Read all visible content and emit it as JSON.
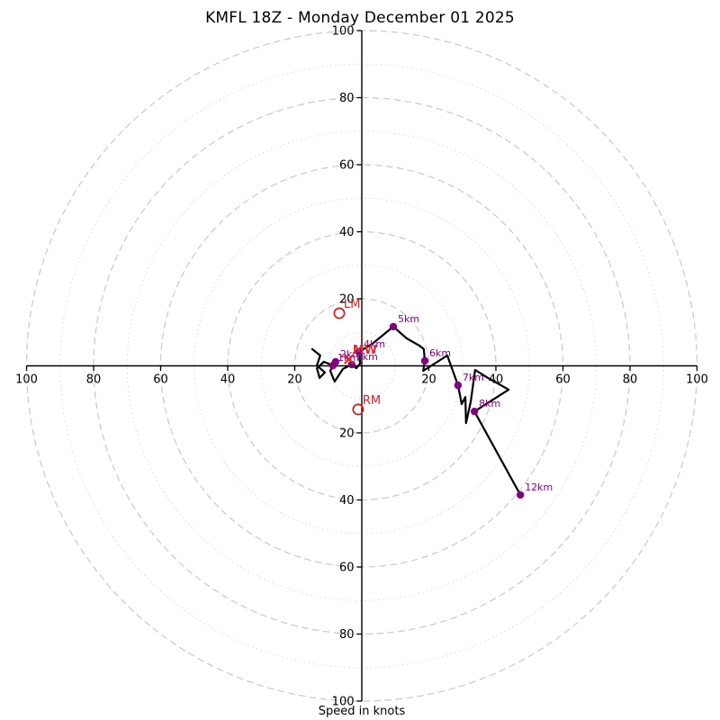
{
  "title": "KMFL 18Z - Monday December 01 2025",
  "xlabel": "Speed in knots",
  "colors": {
    "background": "#ffffff",
    "trace": "#000000",
    "level_marker": "#800080",
    "storm_marker": "#c62828",
    "mean_wind_marker": "#d32f2f",
    "axis": "#000000",
    "grid_major": "#c9c9c9",
    "grid_minor": "#dedede"
  },
  "chart_data": {
    "type": "line",
    "subtype": "hodograph-polar",
    "units": "knots",
    "title": "KMFL 18Z - Monday December 01 2025",
    "xlabel": "Speed in knots",
    "axis_range_knots": [
      0,
      100
    ],
    "axis_tick_values": [
      20,
      40,
      60,
      80,
      100
    ],
    "grid": {
      "major_rings_knots": [
        20,
        40,
        60,
        80,
        100
      ],
      "minor_rings_knots": [
        10,
        30,
        50,
        70,
        90
      ],
      "major_style": "dashed",
      "minor_style": "dotted"
    },
    "trace_uv_knots": [
      [
        -14.8,
        5.0
      ],
      [
        -12.4,
        3.1
      ],
      [
        -13.4,
        0.1
      ],
      [
        -11.0,
        -2.0
      ],
      [
        -12.6,
        -3.6
      ],
      [
        -13.4,
        -0.7
      ],
      [
        -11.3,
        1.2
      ],
      [
        -8.6,
        0.1
      ],
      [
        -7.8,
        1.2
      ],
      [
        -9.4,
        -1.5
      ],
      [
        -8.1,
        -4.7
      ],
      [
        -5.6,
        -0.9
      ],
      [
        -3.0,
        0.4
      ],
      [
        -1.6,
        -0.7
      ],
      [
        -0.5,
        0.7
      ],
      [
        -0.8,
        4.2
      ],
      [
        3.2,
        6.6
      ],
      [
        9.4,
        11.7
      ],
      [
        13.4,
        8.2
      ],
      [
        17.2,
        6.0
      ],
      [
        18.5,
        5.0
      ],
      [
        18.8,
        1.5
      ],
      [
        18.3,
        -1.5
      ],
      [
        25.5,
        3.1
      ],
      [
        28.7,
        -5.8
      ],
      [
        29.8,
        -11.4
      ],
      [
        30.9,
        -9.3
      ],
      [
        31.1,
        -17.1
      ],
      [
        32.5,
        -10.6
      ],
      [
        33.8,
        -1.2
      ],
      [
        37.3,
        -3.4
      ],
      [
        43.8,
        -7.1
      ],
      [
        33.6,
        -13.6
      ],
      [
        47.3,
        -38.5
      ]
    ],
    "levels": [
      {
        "label": "1km",
        "u": -8.6,
        "v": 0.1
      },
      {
        "label": "2km",
        "u": -7.8,
        "v": 1.2
      },
      {
        "label": "3km",
        "u": -3.0,
        "v": 0.4
      },
      {
        "label": "4km",
        "u": -0.8,
        "v": 4.2
      },
      {
        "label": "5km",
        "u": 9.4,
        "v": 11.7
      },
      {
        "label": "6km",
        "u": 18.8,
        "v": 1.5
      },
      {
        "label": "7km",
        "u": 28.7,
        "v": -5.8
      },
      {
        "label": "8km",
        "u": 33.6,
        "v": -13.6
      },
      {
        "label": "12km",
        "u": 47.3,
        "v": -38.5
      }
    ],
    "storm_markers": [
      {
        "label": "LM",
        "u": -6.7,
        "v": 15.7,
        "marker": "open-circle"
      },
      {
        "label": "RM",
        "u": -1.1,
        "v": -13.0,
        "marker": "open-circle"
      },
      {
        "label": "MW",
        "u": -3.8,
        "v": 2.0,
        "marker": "x"
      }
    ]
  }
}
